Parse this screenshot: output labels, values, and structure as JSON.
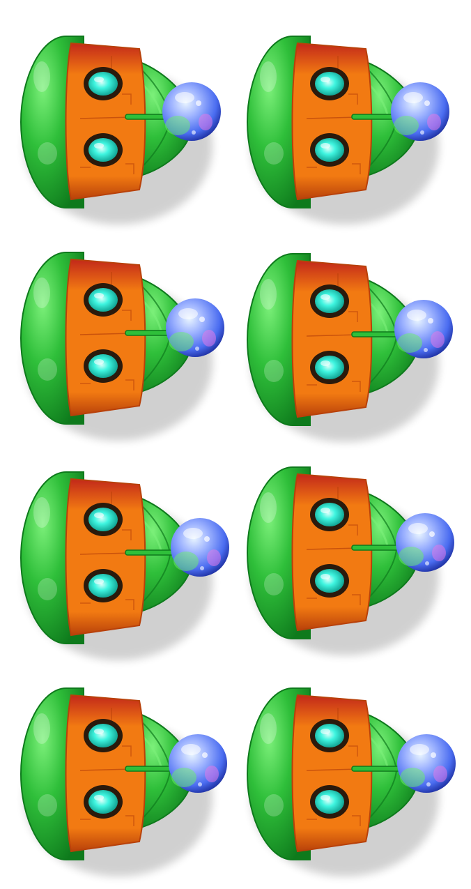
{
  "sprite_sheet": {
    "columns": 2,
    "rows": 4,
    "frame_count": 8,
    "sprite": "green-orange-pod-ship",
    "colors": {
      "background": "#ffffff",
      "hull_green": "#2fbf3a",
      "hull_green_dark": "#0e7a1c",
      "hull_green_light": "#7cf07a",
      "panel_orange": "#f27a12",
      "panel_orange_dark": "#b8410a",
      "panel_red": "#c2281a",
      "porthole_glow": "#3ff5e0",
      "porthole_rim": "#2a1a0c",
      "orb_blue": "#4a6cf0",
      "orb_white": "#e8f4ff",
      "orb_pink": "#e07ae8",
      "orb_green": "#6cf06a"
    }
  }
}
